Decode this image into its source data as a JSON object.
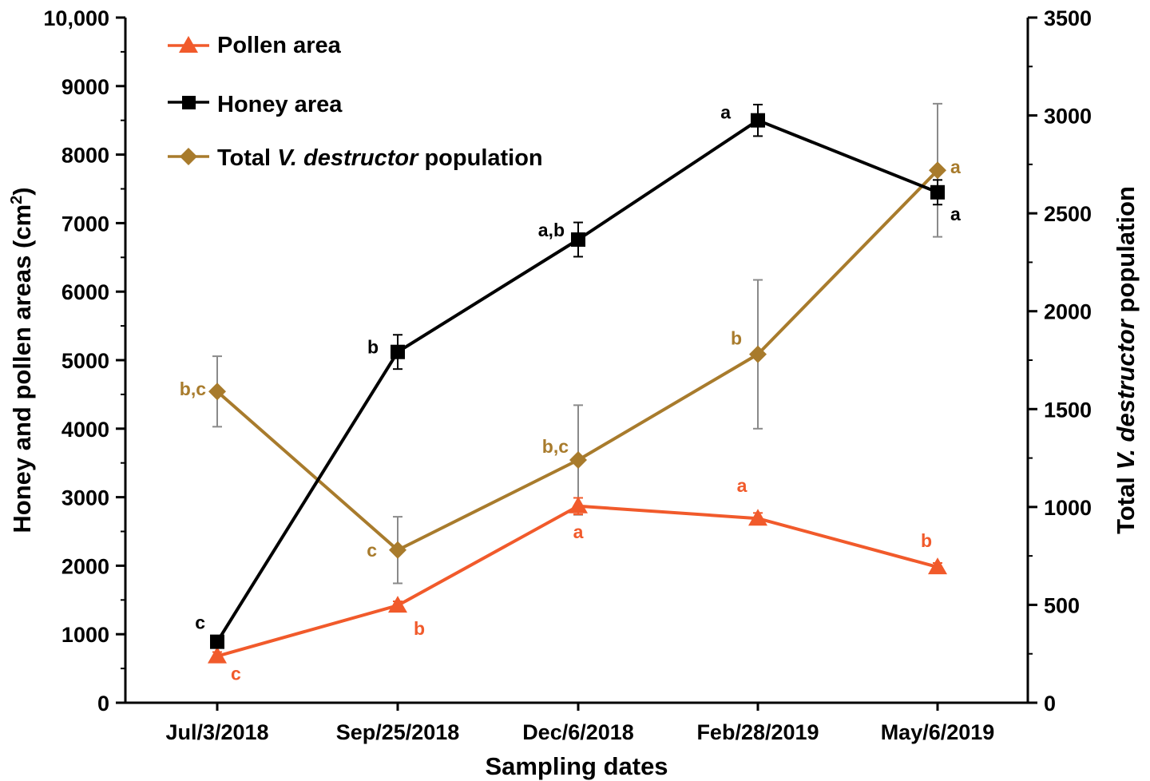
{
  "chart_data": {
    "type": "line",
    "xlabel": "Sampling dates",
    "ylabel_left": [
      "Honey and pollen areas (cm",
      "2",
      ")"
    ],
    "ylabel_right": [
      "Total ",
      "V. destructor",
      " population"
    ],
    "categories": [
      "Jul/3/2018",
      "Sep/25/2018",
      "Dec/6/2018",
      "Feb/28/2019",
      "May/6/2019"
    ],
    "ylim_left": [
      0,
      10000
    ],
    "ylim_right": [
      0,
      3500
    ],
    "yticks_left": [
      "0",
      "1000",
      "2000",
      "3000",
      "4000",
      "5000",
      "6000",
      "7000",
      "8000",
      "9000",
      "10,000"
    ],
    "yticks_right": [
      "0",
      "500",
      "1000",
      "1500",
      "2000",
      "2500",
      "3000",
      "3500"
    ],
    "grid": false,
    "legend_position": "top-left",
    "series": [
      {
        "name": "Pollen area",
        "axis": "left",
        "color": "#f15a2b",
        "marker": "triangle",
        "values": [
          680,
          1420,
          2870,
          2690,
          1980
        ],
        "errors": [
          60,
          60,
          120,
          80,
          60
        ],
        "significance": [
          "c",
          "b",
          "a",
          "a",
          "b"
        ]
      },
      {
        "name": "Honey area",
        "axis": "left",
        "color": "#000000",
        "marker": "square",
        "values": [
          890,
          5120,
          6760,
          8500,
          7450
        ],
        "errors": [
          80,
          250,
          250,
          230,
          180
        ],
        "significance": [
          "c",
          "b",
          "a,b",
          "a",
          "a"
        ]
      },
      {
        "name": [
          "Total ",
          "V. destructor",
          " population"
        ],
        "axis": "right",
        "color": "#a87b2c",
        "marker": "diamond",
        "values": [
          1590,
          780,
          1240,
          1780,
          2720
        ],
        "errors": [
          180,
          170,
          280,
          380,
          340
        ],
        "significance": [
          "b,c",
          "c",
          "b,c",
          "b",
          "a"
        ]
      }
    ]
  }
}
